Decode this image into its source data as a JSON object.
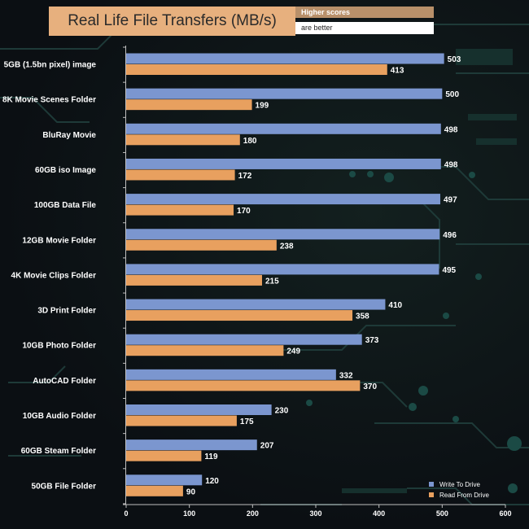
{
  "chart_data": {
    "type": "bar",
    "orientation": "horizontal",
    "title": "Real Life File Transfers (MB/s)",
    "note_line1": "Higher scores",
    "note_line2": "are better",
    "categories": [
      "5GB (1.5bn pixel) image",
      "8K Movie Scenes Folder",
      "BluRay Movie",
      "60GB iso Image",
      "100GB Data File",
      "12GB Movie Folder",
      "4K Movie Clips Folder",
      "3D Print Folder",
      "10GB Photo Folder",
      "AutoCAD Folder",
      "10GB Audio Folder",
      "60GB Steam Folder",
      "50GB File Folder"
    ],
    "series": [
      {
        "name": "Write To  Drive",
        "color": "#7b96cf",
        "values": [
          503,
          500,
          498,
          498,
          497,
          496,
          495,
          410,
          373,
          332,
          230,
          207,
          120
        ]
      },
      {
        "name": "Read From  Drive",
        "color": "#e8a05f",
        "values": [
          413,
          199,
          180,
          172,
          170,
          238,
          215,
          358,
          249,
          370,
          175,
          119,
          90
        ]
      }
    ],
    "xlim": [
      0,
      600
    ],
    "xticks": [
      "0",
      "100",
      "200",
      "300",
      "400",
      "500",
      "600"
    ],
    "legend_position": "bottom-right",
    "grid": false
  }
}
